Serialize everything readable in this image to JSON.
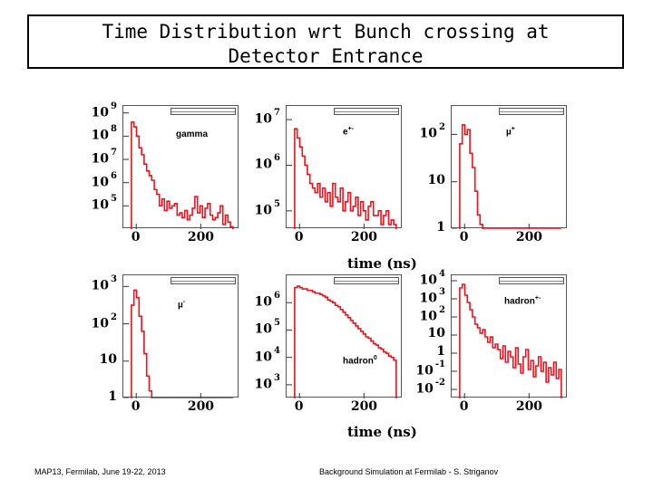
{
  "title": {
    "line1": "Time Distribution wrt Bunch crossing at",
    "line2": "Detector Entrance"
  },
  "axis_titles": [
    "time (ns)",
    "time (ns)"
  ],
  "footer": {
    "left": "MAP13, Fermilab, June 19-22, 2013",
    "right": "Background Simulation at Fermilab - S. Striganov"
  },
  "colors": {
    "histogram": "#e8141c",
    "frame": "#555555"
  },
  "chart_data": [
    {
      "type": "histogram",
      "particle": "gamma",
      "label": "gamma",
      "label_sup": "",
      "yscale": "log",
      "ylim_exp": [
        4,
        9.3
      ],
      "xlim": [
        -40,
        320
      ],
      "xticks": [
        "0",
        "200"
      ],
      "yticks": [
        {
          "base": "10",
          "exp": "9",
          "e": 9
        },
        {
          "base": "10",
          "exp": "8",
          "e": 8
        },
        {
          "base": "10",
          "exp": "7",
          "e": 7
        },
        {
          "base": "10",
          "exp": "6",
          "e": 6
        },
        {
          "base": "10",
          "exp": "5",
          "e": 5
        }
      ],
      "values_exp": [
        8.6,
        8.4,
        8.0,
        7.5,
        7.2,
        6.8,
        6.5,
        6.3,
        6.1,
        5.7,
        5.5,
        5.0,
        5.3,
        4.8,
        5.2,
        4.9,
        5.0,
        5.1,
        4.6,
        4.7,
        4.5,
        4.8,
        4.4,
        4.6,
        4.9,
        5.4,
        4.7,
        5.0,
        4.5,
        4.9,
        5.1,
        4.6,
        4.4,
        4.5,
        4.7,
        5.0,
        4.2,
        4.6,
        4.3,
        4.1
      ]
    },
    {
      "type": "histogram",
      "particle": "e+-",
      "label": "e",
      "label_sup": "+-",
      "yscale": "log",
      "ylim_exp": [
        4.6,
        7.3
      ],
      "xlim": [
        -40,
        320
      ],
      "xticks": [
        "0",
        "200"
      ],
      "yticks": [
        {
          "base": "10",
          "exp": "7",
          "e": 7
        },
        {
          "base": "10",
          "exp": "6",
          "e": 6
        },
        {
          "base": "10",
          "exp": "5",
          "e": 5
        }
      ],
      "values_exp": [
        6.8,
        6.6,
        6.4,
        6.2,
        6.0,
        5.8,
        5.6,
        5.5,
        5.4,
        5.6,
        5.3,
        5.5,
        5.2,
        5.4,
        5.1,
        5.6,
        5.3,
        5.2,
        5.5,
        5.0,
        5.2,
        5.4,
        5.0,
        5.1,
        5.3,
        4.9,
        5.2,
        5.0,
        4.8,
        5.1,
        5.2,
        4.9,
        4.9,
        5.0,
        4.7,
        4.9,
        5.0,
        4.7,
        4.8,
        4.7
      ]
    },
    {
      "type": "histogram",
      "particle": "mu+",
      "label": "µ",
      "label_sup": "+",
      "yscale": "log",
      "ylim_exp": [
        0,
        2.6
      ],
      "xlim": [
        -40,
        320
      ],
      "xticks": [
        "0",
        "200"
      ],
      "yticks": [
        {
          "base": "10",
          "exp": "2",
          "e": 2
        },
        {
          "base": "10",
          "exp": "",
          "e": 1
        },
        {
          "base": "1",
          "exp": "",
          "e": 0
        }
      ],
      "values_exp": [
        1.8,
        2.2,
        2.0,
        2.1,
        1.6,
        1.3,
        0.8,
        0.3,
        0.1,
        0,
        0,
        0,
        0,
        0,
        0,
        0,
        0,
        0,
        0,
        0,
        0,
        0,
        0,
        0,
        0,
        0,
        0,
        0,
        0,
        0,
        0,
        0,
        0,
        0,
        0,
        0,
        0,
        0,
        0,
        0
      ]
    },
    {
      "type": "histogram",
      "particle": "mu-",
      "label": "µ",
      "label_sup": "-",
      "yscale": "log",
      "ylim_exp": [
        0,
        3.3
      ],
      "xlim": [
        -40,
        320
      ],
      "xticks": [
        "0",
        "200"
      ],
      "yticks": [
        {
          "base": "10",
          "exp": "3",
          "e": 3
        },
        {
          "base": "10",
          "exp": "2",
          "e": 2
        },
        {
          "base": "10",
          "exp": "",
          "e": 1
        },
        {
          "base": "1",
          "exp": "",
          "e": 0
        }
      ],
      "values_exp": [
        2.5,
        2.9,
        2.7,
        2.2,
        1.8,
        1.2,
        0.6,
        0.2,
        0,
        0,
        0,
        0,
        0,
        0,
        0,
        0,
        0,
        0,
        0,
        0,
        0,
        0,
        0,
        0,
        0,
        0,
        0,
        0,
        0,
        0,
        0,
        0,
        0,
        0,
        0,
        0,
        0,
        0,
        0,
        0
      ]
    },
    {
      "type": "histogram",
      "particle": "hadron0",
      "label": "hadron",
      "label_sup": "0",
      "yscale": "log",
      "ylim_exp": [
        2.5,
        7.0
      ],
      "xlim": [
        -40,
        320
      ],
      "xticks": [
        "0",
        "200"
      ],
      "yticks": [
        {
          "base": "10",
          "exp": "6",
          "e": 6
        },
        {
          "base": "10",
          "exp": "5",
          "e": 5
        },
        {
          "base": "10",
          "exp": "4",
          "e": 4
        },
        {
          "base": "10",
          "exp": "3",
          "e": 3
        }
      ],
      "values_exp": [
        6.55,
        6.6,
        6.55,
        6.5,
        6.5,
        6.45,
        6.45,
        6.4,
        6.35,
        6.35,
        6.3,
        6.25,
        6.2,
        6.1,
        6.05,
        6.0,
        5.9,
        5.85,
        5.75,
        5.65,
        5.55,
        5.45,
        5.35,
        5.25,
        5.15,
        5.05,
        4.95,
        4.85,
        4.75,
        4.7,
        4.6,
        4.5,
        4.45,
        4.35,
        4.3,
        4.2,
        4.15,
        4.05,
        4.0,
        3.9
      ]
    },
    {
      "type": "histogram",
      "particle": "hadron+-",
      "label": "hadron",
      "label_sup": "+-",
      "yscale": "log",
      "ylim_exp": [
        -2.5,
        4.3
      ],
      "xlim": [
        -40,
        320
      ],
      "xticks": [
        "0",
        "200"
      ],
      "yticks": [
        {
          "base": "10",
          "exp": "4",
          "e": 4
        },
        {
          "base": "10",
          "exp": "3",
          "e": 3
        },
        {
          "base": "10",
          "exp": "2",
          "e": 2
        },
        {
          "base": "10",
          "exp": "",
          "e": 1
        },
        {
          "base": "1",
          "exp": "",
          "e": 0
        },
        {
          "base": "10",
          "exp": "-1",
          "e": -1
        },
        {
          "base": "10",
          "exp": "-2",
          "e": -2
        }
      ],
      "values_exp": [
        3.6,
        3.8,
        3.2,
        2.8,
        2.4,
        2.0,
        1.6,
        1.4,
        1.1,
        1.3,
        0.9,
        0.6,
        0.9,
        0.3,
        0.5,
        0.2,
        -0.3,
        0.4,
        -0.5,
        0.1,
        -0.2,
        -0.8,
        0.3,
        -0.6,
        -1.1,
        -0.2,
        0.2,
        -0.9,
        -0.4,
        -1.3,
        -0.7,
        -0.2,
        -1.0,
        -0.5,
        -1.6,
        -0.8,
        -1.2,
        -0.5,
        -1.4,
        -0.9
      ]
    }
  ]
}
